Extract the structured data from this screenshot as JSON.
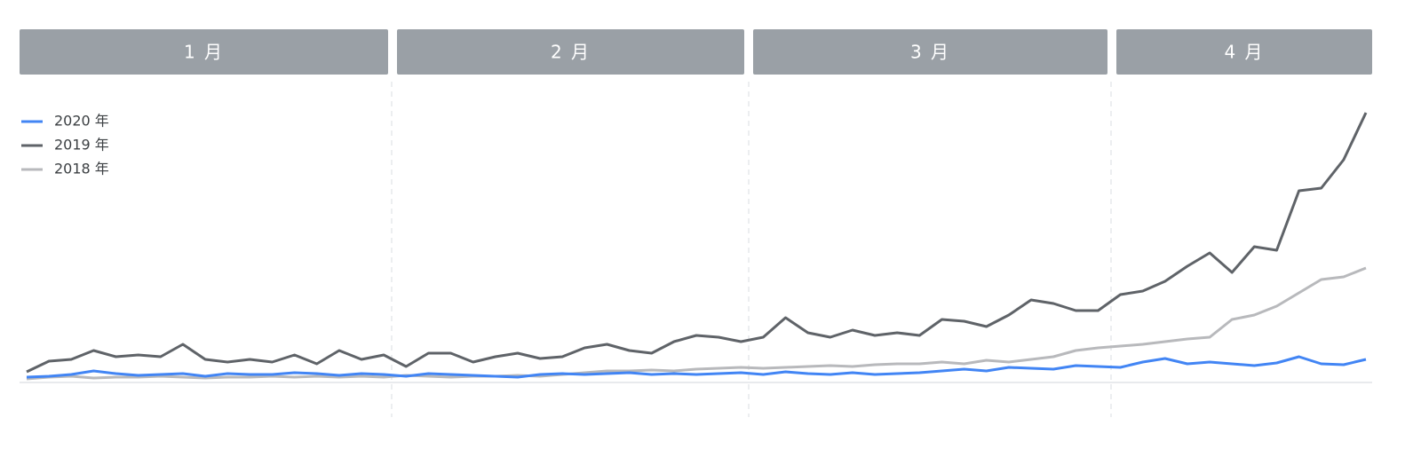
{
  "chart_data": {
    "type": "line",
    "months": [
      "1 月",
      "2 月",
      "3 月",
      "4 月"
    ],
    "ylim": [
      0,
      310
    ],
    "series": [
      {
        "name": "2020 年",
        "color": "#4285f4",
        "values": [
          5,
          6,
          8,
          12,
          9,
          7,
          8,
          9,
          6,
          9,
          8,
          8,
          10,
          9,
          7,
          9,
          8,
          6,
          9,
          8,
          7,
          6,
          5,
          8,
          9,
          8,
          9,
          10,
          8,
          9,
          8,
          9,
          10,
          8,
          11,
          9,
          8,
          10,
          8,
          9,
          10,
          12,
          14,
          12,
          16,
          15,
          14,
          18,
          17,
          16,
          22,
          26,
          20,
          22,
          20,
          18,
          21,
          28,
          20,
          19,
          25
        ]
      },
      {
        "name": "2019 年",
        "color": "#5f6368",
        "values": [
          11,
          23,
          25,
          35,
          28,
          30,
          28,
          42,
          25,
          22,
          25,
          22,
          30,
          20,
          35,
          25,
          30,
          17,
          32,
          32,
          22,
          28,
          32,
          26,
          28,
          38,
          42,
          35,
          32,
          45,
          52,
          50,
          45,
          50,
          72,
          55,
          50,
          58,
          52,
          55,
          52,
          70,
          68,
          62,
          75,
          92,
          88,
          80,
          80,
          98,
          102,
          113,
          130,
          145,
          123,
          152,
          148,
          215,
          218,
          250,
          303
        ]
      },
      {
        "name": "2018 年",
        "color": "#b8b9bc",
        "values": [
          3,
          5,
          6,
          4,
          5,
          5,
          6,
          5,
          4,
          5,
          5,
          6,
          5,
          6,
          5,
          6,
          5,
          7,
          6,
          5,
          6,
          6,
          7,
          6,
          8,
          10,
          12,
          12,
          13,
          12,
          14,
          15,
          16,
          15,
          16,
          17,
          18,
          17,
          19,
          20,
          20,
          22,
          20,
          24,
          22,
          25,
          28,
          35,
          38,
          40,
          42,
          45,
          48,
          50,
          70,
          75,
          85,
          100,
          115,
          118,
          128
        ]
      }
    ]
  }
}
